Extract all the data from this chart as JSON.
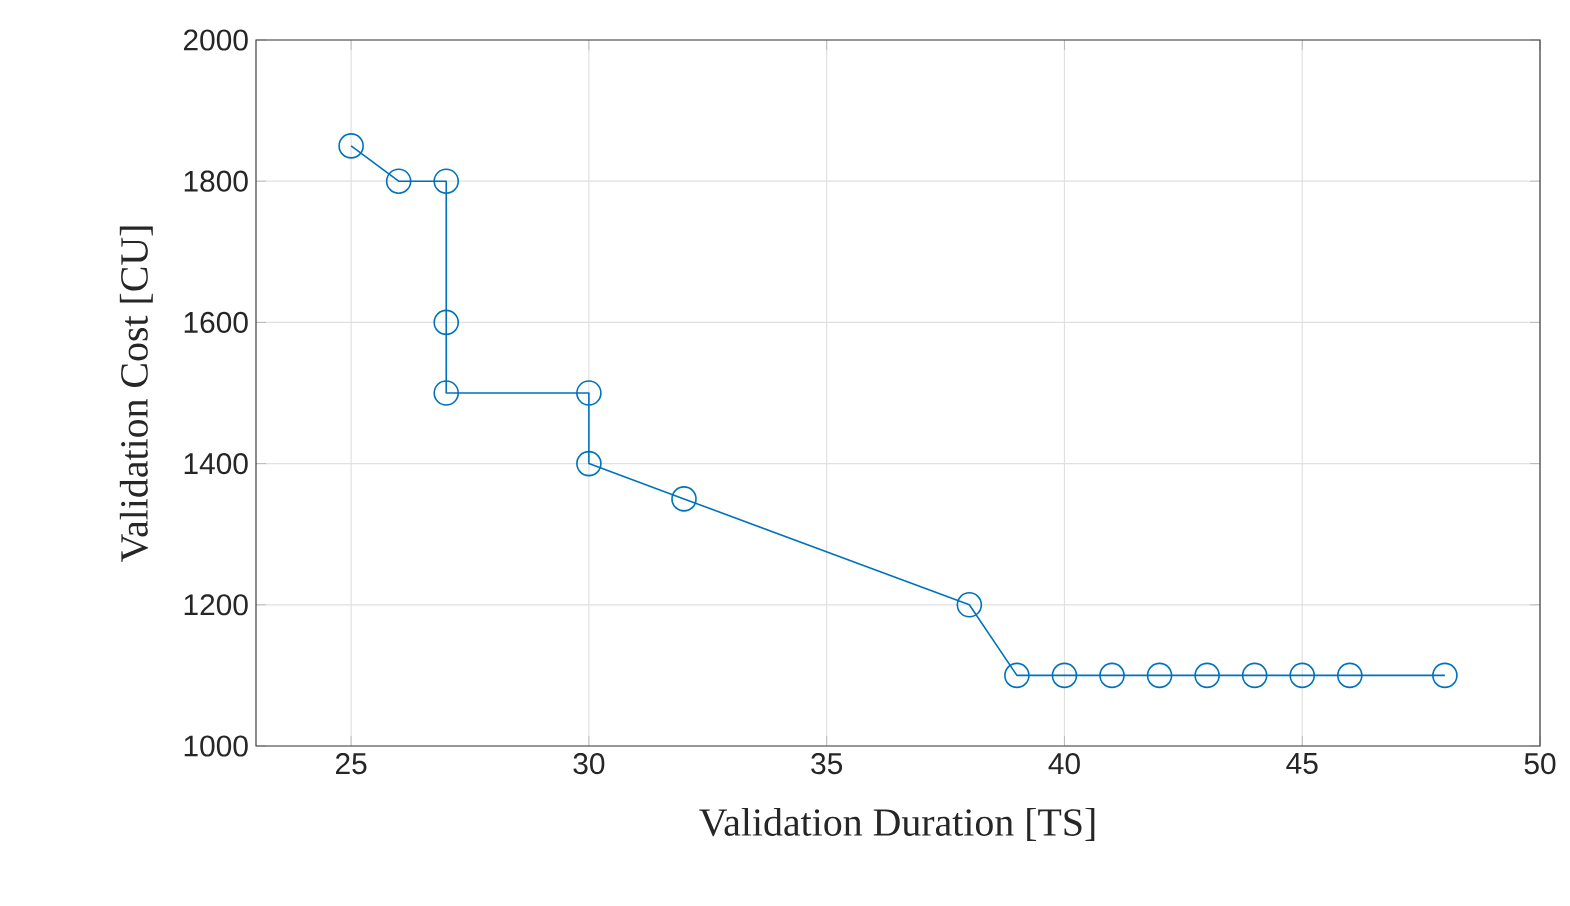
{
  "chart_data": {
    "type": "line",
    "xlabel": "Validation Duration [TS]",
    "ylabel": "Validation Cost [CU]",
    "x": [
      25,
      26,
      27,
      27,
      27,
      30,
      30,
      32,
      38,
      39,
      40,
      41,
      42,
      43,
      44,
      45,
      46,
      48
    ],
    "series": [
      {
        "color": "#0072bd",
        "values": [
          1850,
          1800,
          1800,
          1600,
          1500,
          1500,
          1400,
          1350,
          1200,
          1100,
          1100,
          1100,
          1100,
          1100,
          1100,
          1100,
          1100,
          1100
        ]
      }
    ],
    "xlim": [
      23,
      50
    ],
    "ylim": [
      1000,
      2000
    ],
    "xticks": [
      25,
      30,
      35,
      40,
      45,
      50
    ],
    "yticks": [
      1000,
      1200,
      1400,
      1600,
      1800,
      2000
    ],
    "grid": true,
    "marker": "circle",
    "line_style": "solid"
  }
}
